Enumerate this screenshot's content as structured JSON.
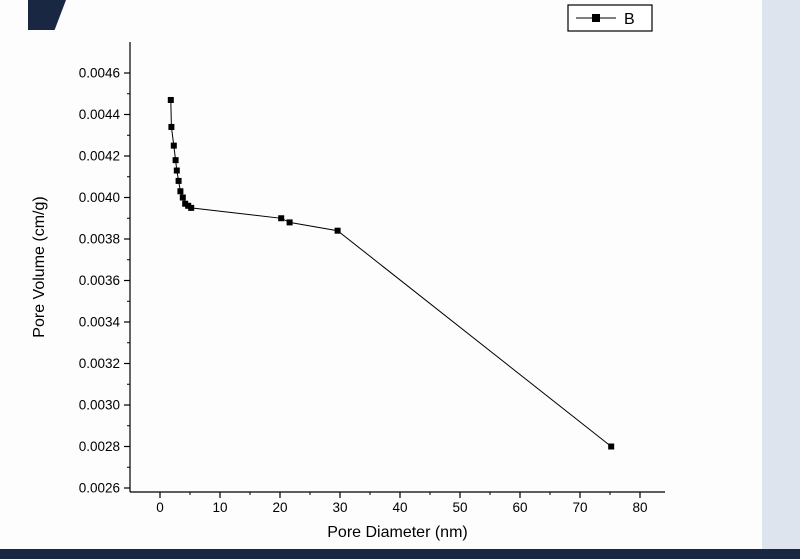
{
  "window": {
    "background": "#fdfdfd",
    "right_strip_color": "#dde4ee",
    "bottom_strip_color": "#1a2742",
    "corner_color": "#1a2742"
  },
  "chart_data": {
    "type": "line",
    "title": "",
    "xlabel": "Pore Diameter (nm)",
    "ylabel": "Pore Volume (cm/g)",
    "legend": {
      "position": "top-right",
      "entries": [
        {
          "label": "B",
          "marker": "filled-square",
          "color": "#000000"
        }
      ]
    },
    "xlim": [
      0,
      80
    ],
    "ylim": [
      0.0026,
      0.0046
    ],
    "x_tick_labels": [
      "0",
      "10",
      "20",
      "30",
      "40",
      "50",
      "60",
      "70",
      "80"
    ],
    "y_tick_labels": [
      "0.0026",
      "0.0028",
      "0.0030",
      "0.0032",
      "0.0034",
      "0.0036",
      "0.0038",
      "0.0040",
      "0.0042",
      "0.0044",
      "0.0046"
    ],
    "grid": false,
    "line_color": "#000000",
    "marker": "square",
    "series": [
      {
        "name": "B",
        "points": [
          [
            1.8,
            0.00447
          ],
          [
            1.9,
            0.00434
          ],
          [
            2.3,
            0.00425
          ],
          [
            2.6,
            0.00418
          ],
          [
            2.8,
            0.00413
          ],
          [
            3.1,
            0.00408
          ],
          [
            3.4,
            0.00403
          ],
          [
            3.8,
            0.004
          ],
          [
            4.2,
            0.00397
          ],
          [
            4.7,
            0.00396
          ],
          [
            5.2,
            0.00395
          ],
          [
            20.2,
            0.0039
          ],
          [
            21.6,
            0.00388
          ],
          [
            29.6,
            0.00384
          ],
          [
            75.2,
            0.0028
          ]
        ]
      }
    ]
  }
}
